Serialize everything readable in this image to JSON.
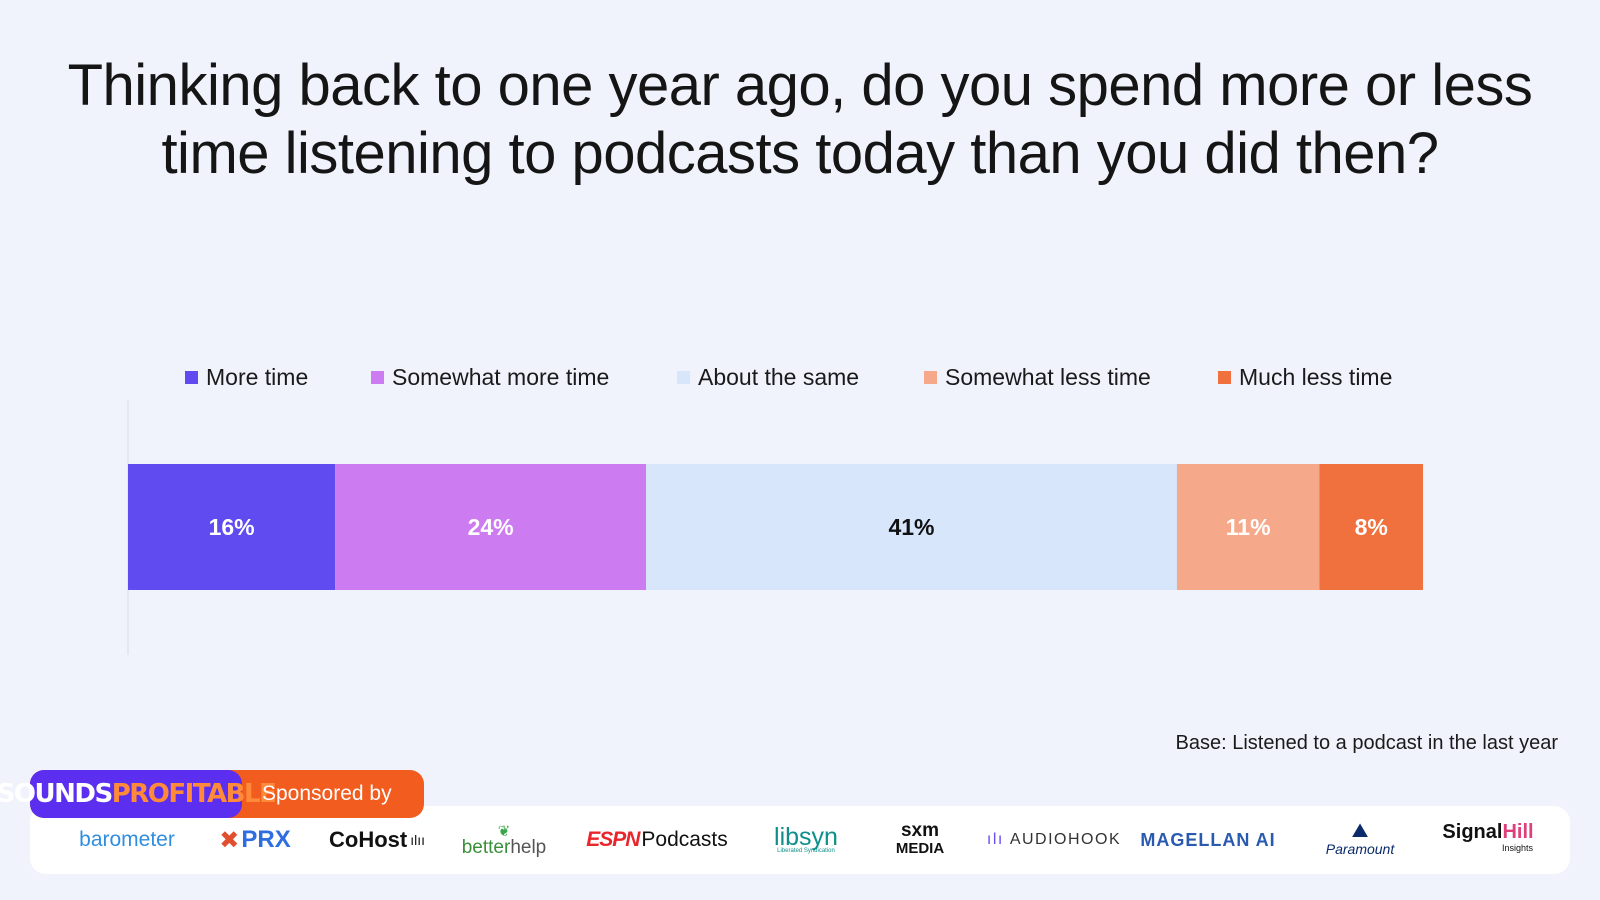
{
  "title": "Thinking back to one year ago, do you spend more or less time listening to podcasts today than you did then?",
  "base_note": "Base: Listened to a podcast in the last year",
  "branding": {
    "logo_text_part1": "SOUNDS",
    "logo_text_part2": "PROFITABLE",
    "sponsored_by": "Sponsored by"
  },
  "sponsors": {
    "barometer": "barometer",
    "prx": "PRX",
    "cohost": "CoHost",
    "betterhelp_better": "better",
    "betterhelp_help": "help",
    "espn": "ESPN",
    "espn_podcasts": "Podcasts",
    "libsyn": "libsyn",
    "libsyn_tagline": "Liberated Syndication",
    "sxm": "sxm",
    "sxm_media": "MEDIA",
    "audiohook": "AUDIOHOOK",
    "magellan": "MAGELLAN AI",
    "paramount": "Paramount",
    "signal": "Signal",
    "signal_hill": "Hill",
    "signal_insights": "Insights"
  },
  "colors": {
    "more_time": "#5f4bf0",
    "somewhat_more_time": "#cc7bf0",
    "about_the_same": "#d8e6fc",
    "somewhat_less_time": "#f6a88a",
    "much_less_time": "#f0703e"
  },
  "chart_data": {
    "type": "bar",
    "orientation": "horizontal",
    "stacked": "100%",
    "categories": [
      ""
    ],
    "series": [
      {
        "name": "More time",
        "values": [
          16
        ],
        "label": "16%",
        "color": "#5f4bf0",
        "label_color": "#ffffff"
      },
      {
        "name": "Somewhat more time",
        "values": [
          24
        ],
        "label": "24%",
        "color": "#cc7bf0",
        "label_color": "#ffffff"
      },
      {
        "name": "About the same",
        "values": [
          41
        ],
        "label": "41%",
        "color": "#d8e6fc",
        "label_color": "#111111"
      },
      {
        "name": "Somewhat less time",
        "values": [
          11
        ],
        "label": "11%",
        "color": "#f6a88a",
        "label_color": "#ffffff"
      },
      {
        "name": "Much less time",
        "values": [
          8
        ],
        "label": "8%",
        "color": "#f0703e",
        "label_color": "#ffffff"
      }
    ],
    "legend_position": "top",
    "grid": false,
    "xlim": [
      0,
      100
    ]
  }
}
